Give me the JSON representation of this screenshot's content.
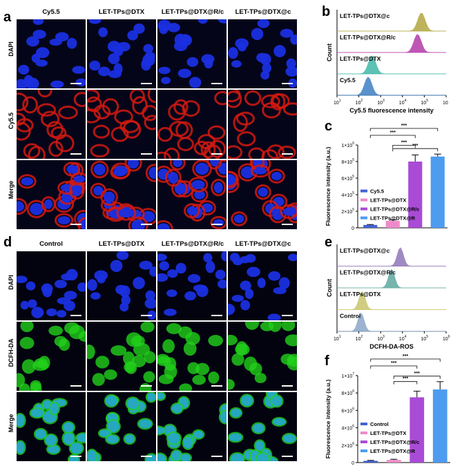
{
  "panel_labels": {
    "a": "a",
    "b": "b",
    "c": "c",
    "d": "d",
    "e": "e",
    "f": "f"
  },
  "panel_a": {
    "columns": [
      "Cy5.5",
      "LET-TPs@DTX",
      "LET-TPs@DTX@R/c",
      "LET-TPs@DTX@c"
    ],
    "rows": [
      "DAPI",
      "Cy5.5",
      "Merge"
    ],
    "colors": {
      "dapi": "#1a2fe0",
      "cy55": "#d21a10",
      "bg": "#05051a"
    }
  },
  "panel_d": {
    "columns": [
      "Control",
      "LET-TPs@DTX",
      "LET-TPs@DTX@R/c",
      "LET-TPs@DTX@c"
    ],
    "rows": [
      "DAPI",
      "DCFH-DA",
      "Merge"
    ],
    "colors": {
      "dapi": "#1a2fe0",
      "dcfh": "#22d11a",
      "bg": "#030310"
    }
  },
  "chart_data": [
    {
      "id": "b",
      "type": "area",
      "series": [
        {
          "name": "Cy5.5",
          "peak_log": 2.2,
          "color": "#3f7fc4"
        },
        {
          "name": "LET-TPs@DTX",
          "peak_log": 2.35,
          "color": "#3fb8a8"
        },
        {
          "name": "LET-TPs@DTX@R/c",
          "peak_log": 4.1,
          "color": "#b43aa8"
        },
        {
          "name": "LET-TPs@DTX@c",
          "peak_log": 4.25,
          "color": "#b2a640"
        }
      ],
      "xlabel": "Cy5.5 fluorescence intensity",
      "ylabel": "Count",
      "xticks": [
        "10",
        "10",
        "10",
        "10",
        "10",
        "10"
      ],
      "xtick_exp": [
        "1",
        "2",
        "3",
        "4",
        "5",
        ""
      ],
      "xlim_log": [
        1,
        5.2
      ],
      "log_scale": true
    },
    {
      "id": "c",
      "type": "bar",
      "categories": [
        "Cy5.5",
        "LET-TPs@DTX",
        "LET-TPs@DTX@R/c",
        "LET-TPs@DTX@R"
      ],
      "legend": [
        "Cy5.5",
        "LET-TPs@DTX",
        "LET-TPs@DTX@R/c",
        "LET-TPs@DTX@R"
      ],
      "values": [
        35000,
        85000,
        800000,
        860000
      ],
      "errors": [
        5000,
        10000,
        80000,
        30000
      ],
      "colors": [
        "#4361d6",
        "#ef8ac8",
        "#a94bd6",
        "#4d9cf0"
      ],
      "ylabel": "Fluorescence intensity (a.u.)",
      "ylim": [
        0,
        1000000
      ],
      "yticks": [
        "0",
        "2×10",
        "4×10",
        "6×10",
        "8×10",
        "1×10"
      ],
      "ytick_exp": [
        "",
        "5",
        "5",
        "5",
        "5",
        "6"
      ],
      "significance": [
        "***",
        "***",
        "***",
        "***"
      ],
      "legend_position": "left"
    },
    {
      "id": "e",
      "type": "area",
      "series": [
        {
          "name": "Control",
          "peak_log": 2.1,
          "color": "#8aa6c8"
        },
        {
          "name": "LET-TPs@DTX",
          "peak_log": 2.15,
          "color": "#c8c46a"
        },
        {
          "name": "LET-TPs@DTX@R/c",
          "peak_log": 3.5,
          "color": "#5fa8a0"
        },
        {
          "name": "LET-TPs@DTX@c",
          "peak_log": 3.9,
          "color": "#8f76b8"
        }
      ],
      "xlabel": "DCFH-DA-ROS",
      "ylabel": "Count",
      "xticks": [
        "10",
        "10",
        "10",
        "10",
        "10",
        "10"
      ],
      "xtick_exp": [
        "1",
        "2",
        "3",
        "4",
        "5",
        "6"
      ],
      "xlim_log": [
        1,
        6
      ],
      "log_scale": true
    },
    {
      "id": "f",
      "type": "bar",
      "categories": [
        "Control",
        "LET-TPs@DTX",
        "LET-TPs@DTX@R/c",
        "LET-TPs@DTX@R"
      ],
      "legend": [
        "Control",
        "LET-TPs@DTX",
        "LET-TPs@DTX@R/c",
        "LET-TPs@DTX@R"
      ],
      "values": [
        200000,
        300000,
        7500000,
        8400000
      ],
      "errors": [
        50000,
        80000,
        700000,
        900000
      ],
      "colors": [
        "#4361d6",
        "#ef8ac8",
        "#a94bd6",
        "#4d9cf0"
      ],
      "ylabel": "Fluorescence intensity (a.u.)",
      "ylim": [
        0,
        10000000
      ],
      "yticks": [
        "0",
        "2×10",
        "4×10",
        "6×10",
        "8×10",
        "1×10"
      ],
      "ytick_exp": [
        "",
        "6",
        "6",
        "6",
        "6",
        "7"
      ],
      "significance": [
        "***",
        "***",
        "***",
        "***"
      ],
      "legend_position": "left"
    }
  ]
}
